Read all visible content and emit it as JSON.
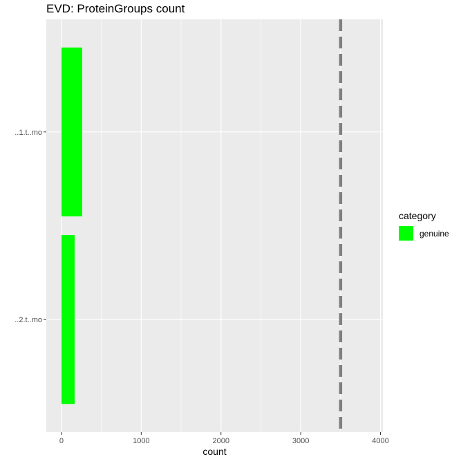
{
  "chart_data": {
    "type": "bar",
    "orientation": "horizontal",
    "title": "EVD: ProteinGroups count",
    "xlabel": "count",
    "ylabel": "",
    "categories": [
      "..1.t..mo",
      "..2.t..mo"
    ],
    "series": [
      {
        "name": "genuine",
        "color": "#00ff00",
        "values": [
          260,
          165
        ]
      }
    ],
    "xlim": [
      -190,
      4030
    ],
    "x_ticks": [
      0,
      1000,
      2000,
      3000,
      4000
    ],
    "x_tick_labels": [
      "0",
      "1000",
      "2000",
      "3000",
      "4000"
    ],
    "reference_line": {
      "x": 3500,
      "style": "dashed",
      "color": "#7f7f7f"
    },
    "grid": true,
    "panel_background": "#ebebeb",
    "legend": {
      "title": "category",
      "position": "right",
      "entries": [
        "genuine"
      ]
    }
  }
}
